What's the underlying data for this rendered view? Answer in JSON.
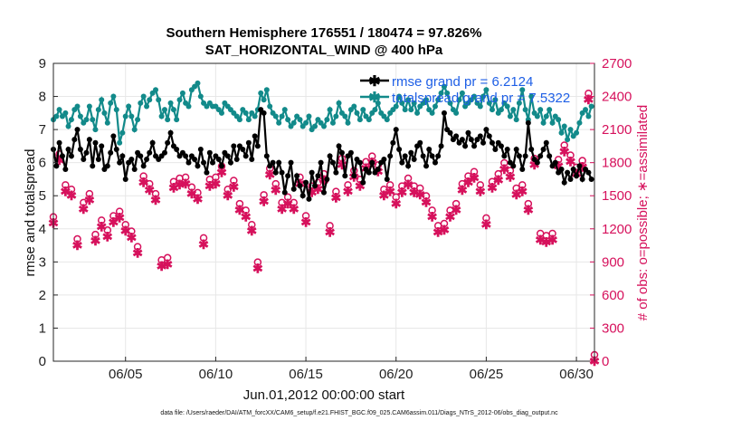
{
  "chart_data": {
    "type": "line",
    "title_line1": "Southern Hemisphere 176551 / 180474 = 97.826%",
    "title_line2": "SAT_HORIZONTAL_WIND @ 400 hPa",
    "xlabel": "Jun.01,2012 00:00:00 start",
    "ylabel_left": "rmse and totalspread",
    "ylabel_right": "# of obs: o=possible; ∗=assimilated",
    "x_range_days": [
      1,
      31
    ],
    "ylim_left": [
      0,
      9
    ],
    "ylim_right": [
      0,
      2700
    ],
    "x_ticks": [
      {
        "day": 5,
        "label": "06/05"
      },
      {
        "day": 10,
        "label": "06/10"
      },
      {
        "day": 15,
        "label": "06/15"
      },
      {
        "day": 20,
        "label": "06/20"
      },
      {
        "day": 25,
        "label": "06/25"
      },
      {
        "day": 30,
        "label": "06/30"
      }
    ],
    "y_ticks_left": [
      "0",
      "1",
      "2",
      "3",
      "4",
      "5",
      "6",
      "7",
      "8",
      "9"
    ],
    "y_ticks_right": [
      "0",
      "300",
      "600",
      "900",
      "1200",
      "1500",
      "1800",
      "2100",
      "2400",
      "2700"
    ],
    "series": [
      {
        "name": "rmse grand pr = 6.2124",
        "color": "#000000",
        "marker": "*",
        "axis": "left",
        "values": [
          6.4,
          5.9,
          6.6,
          6.2,
          5.8,
          6.4,
          6.2,
          6.7,
          7.0,
          6.4,
          6.1,
          6.3,
          6.7,
          5.9,
          6.6,
          6.1,
          6.5,
          5.8,
          5.9,
          6.3,
          6.8,
          6.4,
          6.0,
          6.2,
          5.5,
          6.0,
          6.1,
          5.8,
          6.3,
          6.2,
          5.9,
          6.1,
          6.3,
          6.6,
          6.2,
          6.1,
          6.2,
          6.3,
          6.6,
          6.9,
          6.5,
          6.4,
          6.2,
          6.3,
          6.2,
          6.0,
          6.2,
          6.1,
          5.9,
          6.4,
          6.0,
          5.7,
          6.3,
          6.0,
          6.2,
          6.1,
          5.9,
          6.3,
          6.2,
          6.0,
          6.5,
          6.1,
          6.5,
          6.4,
          6.2,
          6.6,
          6.1,
          6.8,
          6.5,
          7.6,
          7.5,
          6.2,
          5.9,
          6.0,
          5.7,
          6.0,
          5.7,
          5.1,
          5.6,
          6.0,
          5.2,
          5.6,
          5.3,
          5.0,
          5.4,
          4.9,
          5.7,
          5.3,
          5.6,
          6.0,
          5.1,
          5.5,
          6.2,
          6.0,
          5.7,
          6.5,
          6.3,
          5.6,
          6.2,
          6.3,
          5.6,
          6.1,
          6.0,
          5.4,
          5.8,
          5.7,
          6.0,
          5.7,
          5.8,
          6.0,
          6.1,
          5.5,
          6.2,
          6.6,
          7.0,
          6.4,
          6.0,
          6.2,
          5.9,
          6.3,
          6.1,
          6.5,
          6.6,
          6.2,
          5.9,
          6.4,
          6.2,
          6.0,
          6.2,
          6.5,
          7.5,
          7.0,
          6.9,
          6.7,
          6.8,
          6.6,
          6.7,
          6.5,
          6.9,
          6.7,
          6.5,
          6.7,
          6.8,
          6.6,
          7.0,
          6.8,
          6.6,
          6.4,
          6.6,
          6.5,
          6.2,
          6.4,
          6.0,
          5.9,
          6.4,
          6.2,
          5.8,
          6.2,
          7.2,
          6.4,
          6.1,
          6.0,
          6.2,
          6.4,
          6.6,
          6.2,
          5.9,
          6.0,
          5.7,
          5.8,
          5.4,
          5.7,
          5.5,
          5.8,
          5.6,
          5.9,
          5.5,
          5.8,
          5.7,
          5.5
        ],
        "days": [
          1.0,
          1.17,
          1.33,
          1.5,
          1.67,
          1.83,
          2.0,
          2.17,
          2.33,
          2.5,
          2.67,
          2.83,
          3.0,
          3.17,
          3.33,
          3.5,
          3.67,
          3.83,
          4.0,
          4.17,
          4.33,
          4.5,
          4.67,
          4.83,
          5.0,
          5.17,
          5.33,
          5.5,
          5.67,
          5.83,
          6.0,
          6.17,
          6.33,
          6.5,
          6.67,
          6.83,
          7.0,
          7.17,
          7.33,
          7.5,
          7.67,
          7.83,
          8.0,
          8.17,
          8.33,
          8.5,
          8.67,
          8.83,
          9.0,
          9.17,
          9.33,
          9.5,
          9.67,
          9.83,
          10.0,
          10.17,
          10.33,
          10.5,
          10.67,
          10.83,
          11.0,
          11.17,
          11.33,
          11.5,
          11.67,
          11.83,
          12.0,
          12.17,
          12.33,
          12.5,
          12.67,
          12.83,
          13.0,
          13.17,
          13.33,
          13.5,
          13.67,
          13.83,
          14.0,
          14.17,
          14.33,
          14.5,
          14.67,
          14.83,
          15.0,
          15.17,
          15.33,
          15.5,
          15.67,
          15.83,
          16.0,
          16.17,
          16.33,
          16.5,
          16.67,
          16.83,
          17.0,
          17.17,
          17.33,
          17.5,
          17.67,
          17.83,
          18.0,
          18.17,
          18.33,
          18.5,
          18.67,
          18.83,
          19.0,
          19.17,
          19.33,
          19.5,
          19.67,
          19.83,
          20.0,
          20.17,
          20.33,
          20.5,
          20.67,
          20.83,
          21.0,
          21.17,
          21.33,
          21.5,
          21.67,
          21.83,
          22.0,
          22.17,
          22.33,
          22.5,
          22.67,
          22.83,
          23.0,
          23.17,
          23.33,
          23.5,
          23.67,
          23.83,
          24.0,
          24.17,
          24.33,
          24.5,
          24.67,
          24.83,
          25.0,
          25.17,
          25.33,
          25.5,
          25.67,
          25.83,
          26.0,
          26.17,
          26.33,
          26.5,
          26.67,
          26.83,
          27.0,
          27.17,
          27.33,
          27.5,
          27.67,
          27.83,
          28.0,
          28.17,
          28.33,
          28.5,
          28.67,
          28.83,
          29.0,
          29.17,
          29.33,
          29.5,
          29.67,
          29.83,
          30.0,
          30.17,
          30.33,
          30.5,
          30.67,
          30.83
        ]
      },
      {
        "name": "totalspread grand pr = 7.5322",
        "color": "#128a8a",
        "marker": "*",
        "axis": "left",
        "values": [
          7.3,
          7.4,
          7.6,
          7.4,
          7.5,
          7.1,
          7.3,
          7.6,
          7.7,
          7.4,
          7.2,
          7.3,
          7.7,
          7.3,
          7.0,
          7.6,
          7.9,
          7.5,
          7.2,
          7.8,
          8.0,
          7.6,
          6.6,
          6.9,
          7.4,
          7.7,
          7.4,
          7.0,
          7.3,
          7.8,
          8.0,
          7.7,
          7.9,
          8.1,
          8.2,
          7.9,
          7.4,
          7.6,
          7.3,
          7.8,
          7.6,
          7.3,
          7.9,
          8.1,
          7.8,
          7.7,
          8.2,
          8.3,
          8.4,
          8.0,
          7.8,
          7.7,
          7.8,
          7.7,
          7.7,
          7.6,
          7.5,
          7.8,
          7.7,
          7.6,
          7.5,
          7.4,
          7.3,
          7.6,
          7.5,
          7.3,
          7.5,
          7.4,
          7.6,
          8.1,
          7.9,
          8.2,
          7.7,
          7.5,
          7.4,
          7.2,
          7.4,
          7.6,
          7.3,
          7.1,
          7.2,
          7.4,
          7.3,
          7.1,
          7.2,
          7.4,
          7.0,
          7.1,
          7.3,
          7.2,
          7.1,
          7.3,
          7.6,
          7.2,
          7.4,
          7.8,
          7.5,
          7.4,
          7.2,
          7.6,
          7.7,
          7.5,
          7.3,
          7.6,
          7.4,
          7.3,
          7.5,
          7.6,
          7.8,
          7.5,
          7.4,
          7.3,
          7.5,
          7.6,
          7.7,
          8.0,
          7.8,
          7.6,
          7.9,
          7.6,
          7.8,
          7.5,
          7.7,
          7.8,
          7.9,
          7.6,
          7.5,
          7.7,
          7.9,
          8.1,
          8.3,
          8.1,
          7.8,
          7.6,
          7.5,
          7.9,
          8.1,
          7.7,
          7.8,
          7.9,
          8.0,
          7.8,
          7.7,
          8.0,
          8.2,
          7.8,
          7.6,
          7.9,
          7.5,
          7.6,
          7.8,
          7.7,
          7.4,
          7.6,
          7.3,
          7.8,
          8.2,
          7.6,
          7.3,
          8.0,
          7.5,
          7.4,
          7.6,
          7.2,
          7.4,
          7.6,
          7.2,
          7.4,
          7.3,
          6.9,
          7.1,
          6.7,
          7.0,
          6.8,
          6.9,
          7.2,
          7.5,
          7.6,
          7.4,
          7.7
        ],
        "days": [
          1.0,
          1.17,
          1.33,
          1.5,
          1.67,
          1.83,
          2.0,
          2.17,
          2.33,
          2.5,
          2.67,
          2.83,
          3.0,
          3.17,
          3.33,
          3.5,
          3.67,
          3.83,
          4.0,
          4.17,
          4.33,
          4.5,
          4.67,
          4.83,
          5.0,
          5.17,
          5.33,
          5.5,
          5.67,
          5.83,
          6.0,
          6.17,
          6.33,
          6.5,
          6.67,
          6.83,
          7.0,
          7.17,
          7.33,
          7.5,
          7.67,
          7.83,
          8.0,
          8.17,
          8.33,
          8.5,
          8.67,
          8.83,
          9.0,
          9.17,
          9.33,
          9.5,
          9.67,
          9.83,
          10.0,
          10.17,
          10.33,
          10.5,
          10.67,
          10.83,
          11.0,
          11.17,
          11.33,
          11.5,
          11.67,
          11.83,
          12.0,
          12.17,
          12.33,
          12.5,
          12.67,
          12.83,
          13.0,
          13.17,
          13.33,
          13.5,
          13.67,
          13.83,
          14.0,
          14.17,
          14.33,
          14.5,
          14.67,
          14.83,
          15.0,
          15.17,
          15.33,
          15.5,
          15.67,
          15.83,
          16.0,
          16.17,
          16.33,
          16.5,
          16.67,
          16.83,
          17.0,
          17.17,
          17.33,
          17.5,
          17.67,
          17.83,
          18.0,
          18.17,
          18.33,
          18.5,
          18.67,
          18.83,
          19.0,
          19.17,
          19.33,
          19.5,
          19.67,
          19.83,
          20.0,
          20.17,
          20.33,
          20.5,
          20.67,
          20.83,
          21.0,
          21.17,
          21.33,
          21.5,
          21.67,
          21.83,
          22.0,
          22.17,
          22.33,
          22.5,
          22.67,
          22.83,
          23.0,
          23.17,
          23.33,
          23.5,
          23.67,
          23.83,
          24.0,
          24.17,
          24.33,
          24.5,
          24.67,
          24.83,
          25.0,
          25.17,
          25.33,
          25.5,
          25.67,
          25.83,
          26.0,
          26.17,
          26.33,
          26.5,
          26.67,
          26.83,
          27.0,
          27.17,
          27.33,
          27.5,
          27.67,
          27.83,
          28.0,
          28.17,
          28.33,
          28.5,
          28.67,
          28.83,
          29.0,
          29.17,
          29.33,
          29.5,
          29.67,
          29.83,
          30.0,
          30.17,
          30.33,
          30.5,
          30.67,
          30.83
        ]
      },
      {
        "name": "# obs (possible / assimilated)",
        "color": "#d6115c",
        "marker": "o*",
        "axis": "right",
        "days": [
          1.0,
          1.33,
          1.67,
          2.0,
          2.33,
          2.67,
          3.0,
          3.33,
          3.67,
          4.0,
          4.33,
          4.67,
          5.0,
          5.33,
          5.67,
          6.0,
          6.33,
          6.67,
          7.0,
          7.33,
          7.67,
          8.0,
          8.33,
          8.67,
          9.0,
          9.33,
          9.67,
          10.0,
          10.33,
          10.67,
          11.0,
          11.33,
          11.67,
          12.0,
          12.33,
          12.67,
          13.0,
          13.33,
          13.67,
          14.0,
          14.33,
          14.67,
          15.0,
          15.33,
          15.67,
          16.0,
          16.33,
          16.67,
          17.0,
          17.33,
          17.67,
          18.0,
          18.33,
          18.67,
          19.0,
          19.33,
          19.67,
          20.0,
          20.33,
          20.67,
          21.0,
          21.33,
          21.67,
          22.0,
          22.33,
          22.67,
          23.0,
          23.33,
          23.67,
          24.0,
          24.33,
          24.67,
          25.0,
          25.33,
          25.67,
          26.0,
          26.33,
          26.67,
          27.0,
          27.33,
          27.67,
          28.0,
          28.33,
          28.67,
          29.0,
          29.33,
          29.67,
          30.0,
          30.33,
          30.67
        ],
        "values": [
          1250,
          1820,
          1540,
          1500,
          1050,
          1380,
          1460,
          1090,
          1220,
          1130,
          1260,
          1300,
          1180,
          1120,
          980,
          1620,
          1550,
          1460,
          860,
          880,
          1570,
          1600,
          1610,
          1520,
          1470,
          1060,
          1590,
          1610,
          1710,
          1500,
          1580,
          1370,
          1310,
          1180,
          840,
          1450,
          1690,
          1550,
          1380,
          1430,
          1380,
          1610,
          1260,
          1530,
          1560,
          1640,
          1170,
          1480,
          1780,
          1540,
          1670,
          1590,
          1750,
          1800,
          1720,
          1500,
          1540,
          1430,
          1530,
          1600,
          1530,
          1510,
          1440,
          1310,
          1170,
          1190,
          1310,
          1370,
          1550,
          1620,
          1660,
          1540,
          1240,
          1570,
          1640,
          1740,
          1670,
          1510,
          1540,
          1370,
          1780,
          1100,
          1080,
          1100,
          1770,
          1900,
          1810,
          1700,
          1760,
          2370
        ]
      }
    ]
  },
  "legend": {
    "rmse": "rmse grand pr = 6.2124",
    "spread": "totalspread grand pr = 7.5322"
  },
  "footer": "data file: /Users/raeder/DAI/ATM_forcXX/CAM6_setup/f.e21.FHIST_BGC.f09_025.CAM6assim.011/Diags_NTrS_2012-06/obs_diag_output.nc"
}
